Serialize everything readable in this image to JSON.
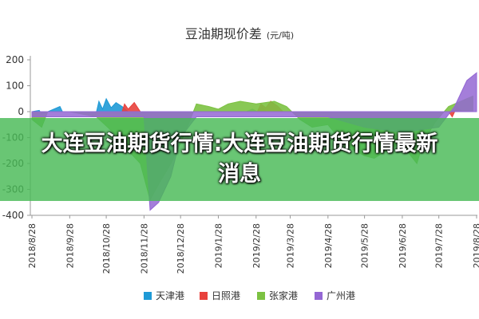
{
  "chart_data": {
    "type": "area",
    "title": "豆油期现价差",
    "unit_label": "(元/吨)",
    "xlabel": "",
    "ylabel": "",
    "ylim": [
      -400,
      200
    ],
    "y_ticks": [
      200,
      100,
      0,
      -100,
      -200,
      -300,
      -400
    ],
    "y_tick_labels": [
      "200",
      "100",
      "0",
      "-100",
      "-200",
      "-300",
      "-400"
    ],
    "x_tick_labels": [
      "2018/8/28",
      "2018/9/28",
      "2018/10/28",
      "2018/11/28",
      "2018/12/28",
      "2019/1/28",
      "2019/2/28",
      "2019/3/28",
      "2019/4/28",
      "2019/5/28",
      "2019/6/28",
      "2019/7/28",
      "2019/8/28"
    ],
    "grid": false,
    "legend_position": "bottom",
    "series": [
      {
        "name": "天津港",
        "color": "#1f9ad6",
        "points": [
          [
            "2018/8/28",
            0
          ],
          [
            "2018/9/3",
            5
          ],
          [
            "2018/9/5",
            -10
          ],
          [
            "2018/9/20",
            20
          ],
          [
            "2018/9/22",
            0
          ],
          [
            "2018/10/20",
            0
          ],
          [
            "2018/10/22",
            40
          ],
          [
            "2018/10/25",
            10
          ],
          [
            "2018/10/28",
            50
          ],
          [
            "2018/11/1",
            15
          ],
          [
            "2018/11/5",
            35
          ],
          [
            "2018/11/10",
            20
          ],
          [
            "2018/11/15",
            0
          ],
          [
            "2019/2/20",
            0
          ],
          [
            "2019/2/25",
            10
          ],
          [
            "2019/3/1",
            0
          ],
          [
            "2019/3/5",
            20
          ],
          [
            "2019/3/8",
            0
          ]
        ]
      },
      {
        "name": "日照港",
        "color": "#e8413c",
        "points": [
          [
            "2018/11/10",
            0
          ],
          [
            "2018/11/12",
            30
          ],
          [
            "2018/11/15",
            10
          ],
          [
            "2018/11/20",
            35
          ],
          [
            "2018/11/25",
            0
          ],
          [
            "2019/3/1",
            0
          ],
          [
            "2019/3/4",
            30
          ],
          [
            "2019/3/8",
            15
          ],
          [
            "2019/3/12",
            40
          ],
          [
            "2019/3/18",
            20
          ],
          [
            "2019/3/22",
            0
          ],
          [
            "2019/8/5",
            0
          ],
          [
            "2019/8/8",
            -20
          ],
          [
            "2019/8/12",
            20
          ],
          [
            "2019/8/16",
            0
          ]
        ]
      },
      {
        "name": "张家港",
        "color": "#7cc242",
        "points": [
          [
            "2018/8/28",
            -30
          ],
          [
            "2018/9/5",
            -60
          ],
          [
            "2018/9/10",
            0
          ],
          [
            "2018/9/28",
            0
          ],
          [
            "2018/10/20",
            -20
          ],
          [
            "2018/11/5",
            -90
          ],
          [
            "2018/11/15",
            -150
          ],
          [
            "2018/11/25",
            -200
          ],
          [
            "2018/12/3",
            -340
          ],
          [
            "2018/12/10",
            -280
          ],
          [
            "2018/12/20",
            -200
          ],
          [
            "2018/12/28",
            -120
          ],
          [
            "2019/1/5",
            -30
          ],
          [
            "2019/1/10",
            30
          ],
          [
            "2019/1/20",
            20
          ],
          [
            "2019/1/28",
            10
          ],
          [
            "2019/2/5",
            30
          ],
          [
            "2019/2/15",
            40
          ],
          [
            "2019/2/28",
            30
          ],
          [
            "2019/3/15",
            40
          ],
          [
            "2019/3/25",
            20
          ],
          [
            "2019/4/5",
            -30
          ],
          [
            "2019/4/15",
            -60
          ],
          [
            "2019/4/28",
            -50
          ],
          [
            "2019/5/10",
            -120
          ],
          [
            "2019/5/20",
            -150
          ],
          [
            "2019/5/28",
            -170
          ],
          [
            "2019/6/5",
            -180
          ],
          [
            "2019/6/15",
            -150
          ],
          [
            "2019/6/28",
            -120
          ],
          [
            "2019/7/5",
            -170
          ],
          [
            "2019/7/10",
            -200
          ],
          [
            "2019/7/15",
            -120
          ],
          [
            "2019/7/25",
            -40
          ],
          [
            "2019/8/5",
            20
          ],
          [
            "2019/8/15",
            40
          ],
          [
            "2019/8/25",
            60
          ]
        ]
      },
      {
        "name": "广州港",
        "color": "#9467d4",
        "points": [
          [
            "2018/8/28",
            -20
          ],
          [
            "2018/9/5",
            -20
          ],
          [
            "2018/10/28",
            -20
          ],
          [
            "2018/11/28",
            -20
          ],
          [
            "2018/12/3",
            -380
          ],
          [
            "2018/12/10",
            -350
          ],
          [
            "2018/12/20",
            -250
          ],
          [
            "2018/12/28",
            -100
          ],
          [
            "2019/1/10",
            -20
          ],
          [
            "2019/4/28",
            -20
          ],
          [
            "2019/5/28",
            -60
          ],
          [
            "2019/6/28",
            -80
          ],
          [
            "2019/7/28",
            -60
          ],
          [
            "2019/8/10",
            20
          ],
          [
            "2019/8/20",
            120
          ],
          [
            "2019/8/28",
            150
          ]
        ]
      }
    ]
  },
  "banner": {
    "text": "大连豆油期货行情:大连豆油期货行情最新消息"
  }
}
